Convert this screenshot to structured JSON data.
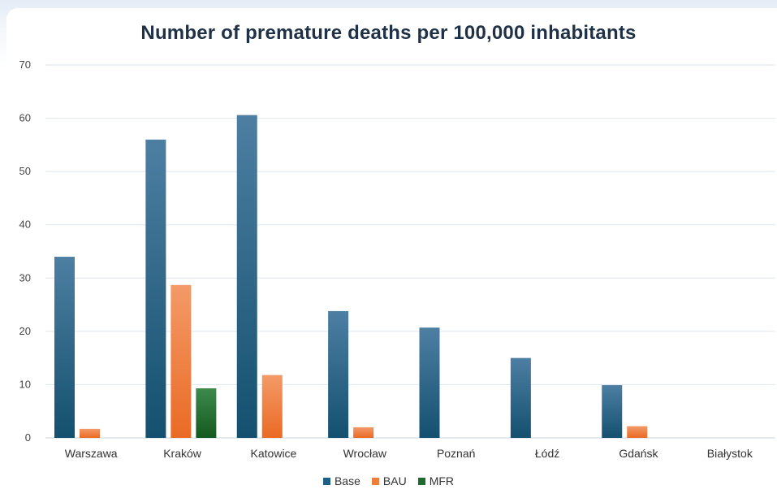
{
  "chart_data": {
    "type": "bar",
    "title": "Number of premature deaths per 100,000 inhabitants",
    "xlabel": "",
    "ylabel": "",
    "ylim": [
      0,
      70
    ],
    "yticks": [
      0,
      10,
      20,
      30,
      40,
      50,
      60,
      70
    ],
    "grid": true,
    "legend_position": "bottom",
    "categories": [
      "Warszawa",
      "Kraków",
      "Katowice",
      "Wrocław",
      "Poznań",
      "Łódź",
      "Gdańsk",
      "Białystok"
    ],
    "series": [
      {
        "name": "Base",
        "color": "#1f5f86",
        "values": [
          34,
          56,
          60.6,
          23.8,
          20.7,
          15,
          9.9,
          0
        ]
      },
      {
        "name": "BAU",
        "color": "#ef7d3c",
        "values": [
          1.7,
          28.7,
          11.8,
          2,
          0,
          0,
          2.2,
          0
        ]
      },
      {
        "name": "MFR",
        "color": "#1e6b2e",
        "values": [
          0,
          9.3,
          0,
          0,
          0,
          0,
          0,
          0
        ]
      }
    ]
  }
}
